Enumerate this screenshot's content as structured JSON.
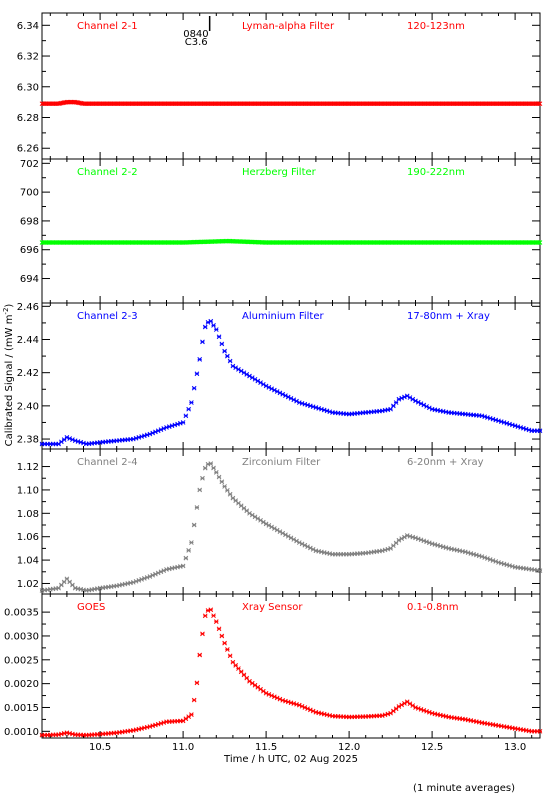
{
  "chart_data": {
    "type": "scatter",
    "xlabel": "Time / h UTC, 02 Aug 2025",
    "ylabel": "Calibrated Signal / (mW m",
    "ylabel_sup": "-2",
    "ylabel_end": ")",
    "xlim": [
      10.15,
      13.15
    ],
    "xticks": [
      10.5,
      11.0,
      11.5,
      12.0,
      12.5,
      13.0
    ],
    "xtick_labels": [
      "10.5",
      "11.0",
      "11.5",
      "12.0",
      "12.5",
      "13.0"
    ],
    "footnote": "(1 minute averages)",
    "flare_marker": {
      "time": "0840",
      "class": "C3.6",
      "x": 11.16
    },
    "panels": [
      {
        "channel": "Channel 2-1",
        "filter": "Lyman-alpha Filter",
        "band": "120-123nm",
        "color": "#ff0000",
        "ylim": [
          6.253,
          6.348
        ],
        "yticks": [
          6.26,
          6.28,
          6.3,
          6.32,
          6.34
        ],
        "ytick_labels": [
          "6.26",
          "6.28",
          "6.30",
          "6.32",
          "6.34"
        ],
        "x": [
          10.15,
          10.25,
          10.3,
          10.35,
          10.4,
          10.5,
          11.0,
          11.5,
          12.0,
          12.5,
          13.0,
          13.15
        ],
        "y": [
          6.289,
          6.289,
          6.29,
          6.29,
          6.289,
          6.289,
          6.289,
          6.289,
          6.289,
          6.289,
          6.289,
          6.289
        ]
      },
      {
        "channel": "Channel 2-2",
        "filter": "Herzberg Filter",
        "band": "190-222nm",
        "color": "#00ff00",
        "ylim": [
          692.3,
          702.3
        ],
        "yticks": [
          694,
          696,
          698,
          700,
          702
        ],
        "ytick_labels": [
          "694",
          "696",
          "698",
          "700",
          "702"
        ],
        "x": [
          10.15,
          10.5,
          11.0,
          11.27,
          11.5,
          12.0,
          12.5,
          13.0,
          13.15
        ],
        "y": [
          696.5,
          696.5,
          696.5,
          696.6,
          696.5,
          696.5,
          696.5,
          696.5,
          696.5
        ]
      },
      {
        "channel": "Channel 2-3",
        "filter": "Aluminium Filter",
        "band": "17-80nm + Xray",
        "color": "#0000ff",
        "ylim": [
          2.374,
          2.462
        ],
        "yticks": [
          2.38,
          2.4,
          2.42,
          2.44,
          2.46
        ],
        "ytick_labels": [
          "2.38",
          "2.40",
          "2.42",
          "2.44",
          "2.46"
        ],
        "x": [
          10.15,
          10.25,
          10.3,
          10.35,
          10.42,
          10.5,
          10.6,
          10.7,
          10.8,
          10.9,
          11.0,
          11.05,
          11.1,
          11.13,
          11.16,
          11.2,
          11.25,
          11.3,
          11.4,
          11.5,
          11.6,
          11.7,
          11.8,
          11.9,
          12.0,
          12.1,
          12.2,
          12.25,
          12.3,
          12.35,
          12.4,
          12.5,
          12.6,
          12.7,
          12.8,
          12.9,
          13.0,
          13.1,
          13.15
        ],
        "y": [
          2.377,
          2.377,
          2.381,
          2.379,
          2.377,
          2.378,
          2.379,
          2.38,
          2.383,
          2.387,
          2.39,
          2.402,
          2.428,
          2.447,
          2.452,
          2.446,
          2.433,
          2.424,
          2.418,
          2.412,
          2.407,
          2.402,
          2.399,
          2.396,
          2.395,
          2.396,
          2.397,
          2.398,
          2.404,
          2.406,
          2.403,
          2.398,
          2.396,
          2.395,
          2.394,
          2.391,
          2.388,
          2.385,
          2.385
        ]
      },
      {
        "channel": "Channel 2-4",
        "filter": "Zirconium Filter",
        "band": "6-20nm + Xray",
        "color": "#808080",
        "ylim": [
          1.011,
          1.135
        ],
        "yticks": [
          1.02,
          1.04,
          1.06,
          1.08,
          1.1,
          1.12
        ],
        "ytick_labels": [
          "1.02",
          "1.04",
          "1.06",
          "1.08",
          "1.10",
          "1.12"
        ],
        "x": [
          10.15,
          10.25,
          10.3,
          10.35,
          10.42,
          10.5,
          10.6,
          10.7,
          10.8,
          10.9,
          11.0,
          11.05,
          11.1,
          11.13,
          11.16,
          11.2,
          11.25,
          11.3,
          11.4,
          11.5,
          11.6,
          11.7,
          11.8,
          11.9,
          12.0,
          12.1,
          12.2,
          12.25,
          12.3,
          12.35,
          12.4,
          12.5,
          12.6,
          12.7,
          12.8,
          12.9,
          13.0,
          13.1,
          13.15
        ],
        "y": [
          1.014,
          1.016,
          1.024,
          1.016,
          1.014,
          1.016,
          1.018,
          1.021,
          1.026,
          1.032,
          1.035,
          1.055,
          1.1,
          1.118,
          1.124,
          1.115,
          1.103,
          1.093,
          1.08,
          1.071,
          1.063,
          1.055,
          1.048,
          1.045,
          1.045,
          1.046,
          1.048,
          1.05,
          1.057,
          1.061,
          1.059,
          1.054,
          1.05,
          1.047,
          1.043,
          1.038,
          1.034,
          1.032,
          1.031
        ]
      },
      {
        "channel": "GOES",
        "filter": "Xray Sensor",
        "band": "0.1-0.8nm",
        "color": "#ff0000",
        "ylim": [
          0.00086,
          0.00388
        ],
        "yticks": [
          0.001,
          0.0015,
          0.002,
          0.0025,
          0.003,
          0.0035
        ],
        "ytick_labels": [
          "0.0010",
          "0.0015",
          "0.0020",
          "0.0025",
          "0.0030",
          "0.0035"
        ],
        "x": [
          10.15,
          10.25,
          10.3,
          10.35,
          10.42,
          10.5,
          10.6,
          10.7,
          10.8,
          10.9,
          11.0,
          11.05,
          11.08,
          11.1,
          11.13,
          11.16,
          11.2,
          11.25,
          11.3,
          11.4,
          11.5,
          11.6,
          11.7,
          11.8,
          11.9,
          12.0,
          12.1,
          12.2,
          12.25,
          12.3,
          12.35,
          12.4,
          12.5,
          12.6,
          12.7,
          12.8,
          12.9,
          13.0,
          13.1,
          13.15
        ],
        "y": [
          0.00092,
          0.00093,
          0.00097,
          0.00093,
          0.00092,
          0.00094,
          0.00097,
          0.00102,
          0.0011,
          0.0012,
          0.00122,
          0.00135,
          0.0019,
          0.0026,
          0.0034,
          0.0036,
          0.0033,
          0.00285,
          0.00245,
          0.00205,
          0.0018,
          0.00165,
          0.00155,
          0.0014,
          0.00132,
          0.0013,
          0.00131,
          0.00133,
          0.00138,
          0.00152,
          0.00162,
          0.0015,
          0.00138,
          0.0013,
          0.00125,
          0.00118,
          0.00112,
          0.00106,
          0.001,
          0.001
        ]
      }
    ]
  }
}
